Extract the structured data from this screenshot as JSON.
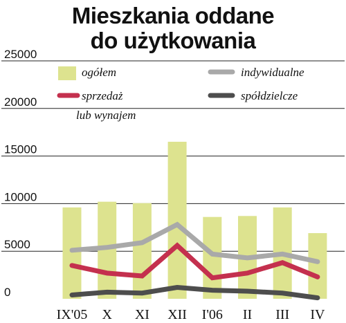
{
  "title_line1": "Mieszkania oddane",
  "title_line2": "do użytkowania",
  "chart_data": {
    "type": "bar",
    "categories": [
      "IX'05",
      "X",
      "XI",
      "XII",
      "I'06",
      "II",
      "III",
      "IV"
    ],
    "y_ticks": [
      "0",
      "5000",
      "10000",
      "15000",
      "20000",
      "25000"
    ],
    "ylim": [
      0,
      25000
    ],
    "grid": true,
    "legend_position": "top",
    "bars": {
      "name": "ogółem",
      "color": "#dde38f",
      "values": [
        9600,
        10200,
        10050,
        16500,
        8600,
        8700,
        9600,
        6900
      ]
    },
    "lines": [
      {
        "name": "indywidualne",
        "color": "#a9a9a9",
        "values": [
          5100,
          5400,
          5900,
          7800,
          4700,
          4300,
          4700,
          3900
        ]
      },
      {
        "name_line1": "sprzedaż",
        "name_line2": "lub wynajem",
        "color": "#c4304e",
        "values": [
          3500,
          2700,
          2400,
          5600,
          2200,
          2700,
          3800,
          2300
        ]
      },
      {
        "name": "spółdzielcze",
        "color": "#4d4d4d",
        "values": [
          400,
          700,
          600,
          1200,
          900,
          800,
          600,
          100
        ]
      }
    ]
  }
}
